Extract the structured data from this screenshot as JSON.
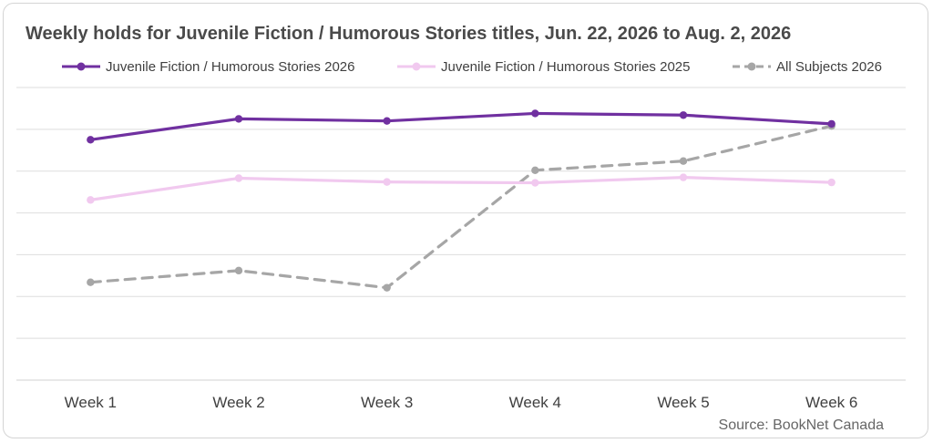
{
  "chart_data": {
    "type": "line",
    "title": "Weekly holds for Juvenile Fiction / Humorous Stories titles, Jun. 22, 2026 to Aug. 2, 2026",
    "xlabel": "",
    "ylabel": "",
    "categories": [
      "Week 1",
      "Week 2",
      "Week 3",
      "Week 4",
      "Week 5",
      "Week 6"
    ],
    "ylim": [
      0,
      70
    ],
    "grid": true,
    "legend_position": "top",
    "source": "Source: BookNet Canada",
    "series": [
      {
        "name": "Juvenile Fiction / Humorous Stories 2026",
        "color": "#7030a0",
        "style": "solid",
        "values": [
          57.5,
          62.5,
          62.0,
          63.8,
          63.4,
          61.3
        ]
      },
      {
        "name": "Juvenile Fiction / Humorous Stories 2025",
        "color": "#f1c9ef",
        "style": "solid",
        "values": [
          43.1,
          48.3,
          47.4,
          47.2,
          48.5,
          47.3
        ]
      },
      {
        "name": "All Subjects 2026",
        "color": "#a6a6a6",
        "style": "dashed",
        "values": [
          23.4,
          26.2,
          22.1,
          50.2,
          52.4,
          60.8
        ]
      }
    ]
  }
}
